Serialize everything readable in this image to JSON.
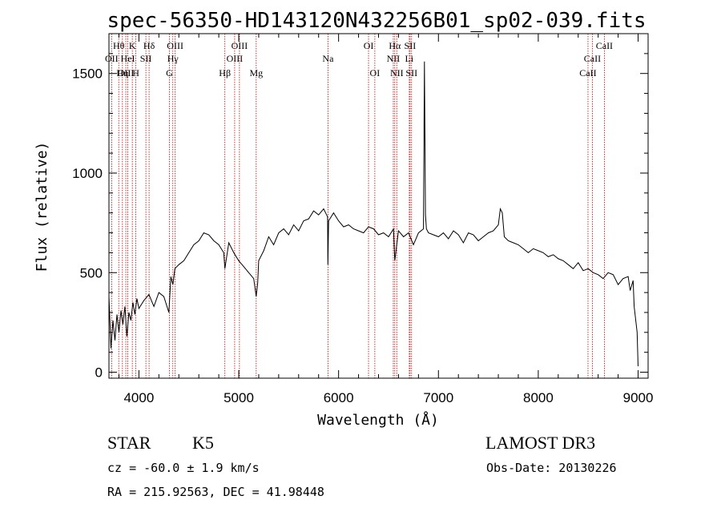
{
  "chart_data": {
    "type": "line",
    "title": "spec-56350-HD143120N432256B01_sp02-039.fits",
    "xlabel": "Wavelength (Å)",
    "ylabel": "Flux (relative)",
    "xlim": [
      3700,
      9100
    ],
    "ylim": [
      -30,
      1700
    ],
    "x_ticks": [
      4000,
      5000,
      6000,
      7000,
      8000,
      9000
    ],
    "y_ticks": [
      0,
      500,
      1000,
      1500
    ],
    "series": [
      {
        "x": [
          3700,
          3720,
          3740,
          3760,
          3780,
          3800,
          3820,
          3840,
          3860,
          3880,
          3900,
          3920,
          3940,
          3960,
          3980,
          4000,
          4050,
          4100,
          4150,
          4200,
          4250,
          4300,
          4320,
          4340,
          4360,
          4400,
          4450,
          4500,
          4550,
          4600,
          4650,
          4700,
          4750,
          4800,
          4850,
          4861,
          4900,
          4950,
          5000,
          5050,
          5100,
          5150,
          5175,
          5190,
          5200,
          5250,
          5300,
          5350,
          5400,
          5450,
          5500,
          5550,
          5600,
          5650,
          5700,
          5750,
          5800,
          5850,
          5890,
          5893,
          5900,
          5950,
          6000,
          6050,
          6100,
          6150,
          6200,
          6250,
          6300,
          6350,
          6400,
          6450,
          6500,
          6550,
          6563,
          6600,
          6650,
          6700,
          6750,
          6800,
          6850,
          6860,
          6870,
          6880,
          6900,
          6950,
          7000,
          7050,
          7100,
          7150,
          7200,
          7250,
          7300,
          7350,
          7400,
          7450,
          7500,
          7550,
          7600,
          7620,
          7640,
          7660,
          7700,
          7750,
          7800,
          7850,
          7900,
          7950,
          8000,
          8050,
          8100,
          8150,
          8200,
          8250,
          8300,
          8350,
          8400,
          8450,
          8500,
          8550,
          8600,
          8650,
          8700,
          8750,
          8800,
          8850,
          8900,
          8920,
          8950,
          8960,
          8990,
          9000
        ],
        "y": [
          380,
          120,
          260,
          160,
          290,
          200,
          310,
          240,
          330,
          180,
          300,
          260,
          350,
          290,
          370,
          320,
          360,
          390,
          330,
          400,
          380,
          300,
          480,
          440,
          520,
          540,
          560,
          600,
          640,
          660,
          700,
          690,
          660,
          640,
          600,
          520,
          650,
          600,
          560,
          530,
          500,
          470,
          380,
          450,
          560,
          610,
          680,
          640,
          700,
          720,
          690,
          740,
          710,
          760,
          770,
          810,
          790,
          820,
          780,
          540,
          760,
          800,
          760,
          730,
          740,
          720,
          710,
          700,
          730,
          720,
          690,
          700,
          680,
          720,
          560,
          710,
          680,
          700,
          640,
          700,
          720,
          1560,
          790,
          720,
          700,
          690,
          680,
          700,
          670,
          710,
          690,
          650,
          700,
          690,
          660,
          680,
          700,
          710,
          740,
          820,
          800,
          680,
          660,
          650,
          640,
          620,
          600,
          620,
          610,
          600,
          580,
          590,
          570,
          560,
          540,
          520,
          550,
          510,
          520,
          500,
          490,
          470,
          500,
          490,
          440,
          470,
          480,
          410,
          460,
          330,
          200,
          30
        ]
      }
    ],
    "spectral_lines": [
      {
        "label": "Hθ",
        "x": 3798,
        "row": 0
      },
      {
        "label": "OII",
        "x": 3727,
        "row": 1
      },
      {
        "label": "OIII",
        "x": 3869,
        "row": 2
      },
      {
        "label": "K",
        "x": 3934,
        "row": 0
      },
      {
        "label": "HeI",
        "x": 3889,
        "row": 1
      },
      {
        "label": "Hη",
        "x": 3835,
        "row": 2
      },
      {
        "label": "Hδ",
        "x": 4102,
        "row": 0
      },
      {
        "label": "SII",
        "x": 4070,
        "row": 1
      },
      {
        "label": "H",
        "x": 3969,
        "row": 2
      },
      {
        "label": "OIII",
        "x": 4363,
        "row": 0
      },
      {
        "label": "Hγ",
        "x": 4340,
        "row": 1
      },
      {
        "label": "G",
        "x": 4305,
        "row": 2
      },
      {
        "label": "OIII",
        "x": 5007,
        "row": 0
      },
      {
        "label": "OIII",
        "x": 4959,
        "row": 1
      },
      {
        "label": "Hβ",
        "x": 4861,
        "row": 2
      },
      {
        "label": "Mg",
        "x": 5175,
        "row": 2
      },
      {
        "label": "Na",
        "x": 5894,
        "row": 1
      },
      {
        "label": "OI",
        "x": 6300,
        "row": 0
      },
      {
        "label": "OI",
        "x": 6363,
        "row": 2
      },
      {
        "label": "Hα",
        "x": 6563,
        "row": 0
      },
      {
        "label": "NII",
        "x": 6548,
        "row": 1
      },
      {
        "label": "NII",
        "x": 6583,
        "row": 2
      },
      {
        "label": "SII",
        "x": 6716,
        "row": 0
      },
      {
        "label": "Li",
        "x": 6708,
        "row": 1
      },
      {
        "label": "SII",
        "x": 6731,
        "row": 2
      },
      {
        "label": "CaII",
        "x": 8662,
        "row": 0
      },
      {
        "label": "CaII",
        "x": 8542,
        "row": 1
      },
      {
        "label": "CaII",
        "x": 8498,
        "row": 2
      }
    ]
  },
  "info": {
    "class": "STAR",
    "subclass": "K5",
    "survey": "LAMOST DR3",
    "cz": "cz = -60.0 ± 1.9 km/s",
    "obs_date": "Obs-Date: 20130226",
    "radec": "RA = 215.92563, DEC =  41.98448"
  },
  "colors": {
    "spectrum": "#000000",
    "line_markers": "#c00000"
  }
}
